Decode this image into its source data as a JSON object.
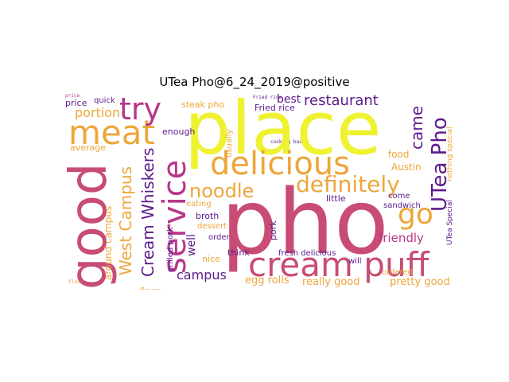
{
  "title": "UTea Pho@6_24_2019@positive",
  "colors": {
    "yellow": "#eef230",
    "magenta": "#c84c73",
    "orange": "#eda63a",
    "purple": "#5c1a8c",
    "pink": "#b8378a",
    "darkorange": "#de7a3a"
  },
  "words": {
    "pho": "pho",
    "place": "place",
    "good": "good",
    "cream_puff": "cream puff",
    "delicious": "delicious",
    "service": "service",
    "meat": "meat",
    "try": "try",
    "definitely": "definitely",
    "noodle": "noodle",
    "go": "go",
    "utea_pho": "UTea Pho",
    "cream_whiskers": "Cream Whiskers",
    "west_campus": "West Campus",
    "restaurant": "restaurant",
    "best": "best",
    "came": "came",
    "portion": "portion",
    "friendly": "friendly",
    "campus": "campus",
    "egg_rolls": "egg rolls",
    "really_good": "really good",
    "pretty_good": "pretty good",
    "fresh_delicious": "fresh delicious",
    "austin": "Austin",
    "food": "food",
    "steak_pho": "steak pho",
    "fried_rice": "Fried rice",
    "price": "price",
    "quick": "quick",
    "average": "average",
    "enough": "enough",
    "well": "well",
    "nice": "nice",
    "think": "think",
    "broth": "broth",
    "order": "order",
    "dessert": "dessert",
    "eating": "eating",
    "sandwich": "sandwich",
    "pork": "pork",
    "grilled_pork": "grilled pork",
    "little": "little",
    "come": "come",
    "ordered": "ordered",
    "will": "will",
    "usually": "usually",
    "around_campus": "around campus",
    "utea_special": "UTea Special",
    "nothing_special": "nothing special",
    "flavor": "flavor",
    "cooking_back": "cooking back"
  }
}
